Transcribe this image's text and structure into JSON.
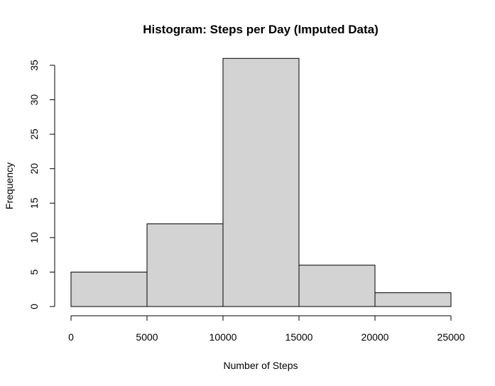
{
  "chart_data": {
    "type": "bar",
    "title": "Histogram: Steps per Day (Imputed Data)",
    "xlabel": "Number of Steps",
    "ylabel": "Frequency",
    "bins": [
      {
        "start": 0,
        "end": 5000,
        "count": 5
      },
      {
        "start": 5000,
        "end": 10000,
        "count": 12
      },
      {
        "start": 10000,
        "end": 15000,
        "count": 36
      },
      {
        "start": 15000,
        "end": 20000,
        "count": 6
      },
      {
        "start": 20000,
        "end": 25000,
        "count": 2
      }
    ],
    "xlim": [
      0,
      25000
    ],
    "ylim": [
      0,
      35
    ],
    "xticks": [
      "0",
      "5000",
      "10000",
      "15000",
      "20000",
      "25000"
    ],
    "yticks": [
      "0",
      "5",
      "10",
      "15",
      "20",
      "25",
      "30",
      "35"
    ],
    "grid": false,
    "bar_color": "#d3d3d3",
    "edge_color": "#000000"
  }
}
